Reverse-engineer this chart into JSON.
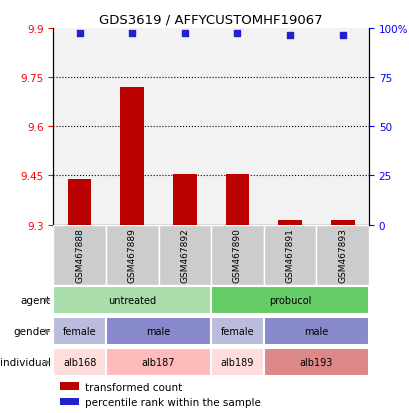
{
  "title": "GDS3619 / AFFYCUSTOMHF19067",
  "samples": [
    "GSM467888",
    "GSM467889",
    "GSM467892",
    "GSM467890",
    "GSM467891",
    "GSM467893"
  ],
  "bar_values": [
    9.44,
    9.72,
    9.455,
    9.455,
    9.315,
    9.315
  ],
  "bar_baseline": 9.3,
  "percentile_values": [
    97.5,
    97.5,
    97.5,
    97.5,
    96.5,
    96.5
  ],
  "ylim_left": [
    9.3,
    9.9
  ],
  "ylim_right": [
    0,
    100
  ],
  "yticks_left": [
    9.3,
    9.45,
    9.6,
    9.75,
    9.9
  ],
  "yticks_right": [
    0,
    25,
    50,
    75,
    100
  ],
  "ytick_labels_right": [
    "0",
    "25",
    "50",
    "75",
    "100%"
  ],
  "dotted_lines": [
    9.75,
    9.6,
    9.45
  ],
  "bar_color": "#bb0000",
  "scatter_color": "#2222cc",
  "agent_groups": [
    {
      "label": "untreated",
      "start": 0,
      "end": 3,
      "color": "#aaddaa"
    },
    {
      "label": "probucol",
      "start": 3,
      "end": 6,
      "color": "#66cc66"
    }
  ],
  "gender_groups": [
    {
      "label": "female",
      "start": 0,
      "end": 1,
      "color": "#bbbbdd"
    },
    {
      "label": "male",
      "start": 1,
      "end": 3,
      "color": "#8888cc"
    },
    {
      "label": "female",
      "start": 3,
      "end": 4,
      "color": "#bbbbdd"
    },
    {
      "label": "male",
      "start": 4,
      "end": 6,
      "color": "#8888cc"
    }
  ],
  "individual_groups": [
    {
      "label": "alb168",
      "start": 0,
      "end": 1,
      "color": "#ffdddd"
    },
    {
      "label": "alb187",
      "start": 1,
      "end": 3,
      "color": "#ffbbbb"
    },
    {
      "label": "alb189",
      "start": 3,
      "end": 4,
      "color": "#ffdddd"
    },
    {
      "label": "alb193",
      "start": 4,
      "end": 6,
      "color": "#dd8888"
    }
  ],
  "row_labels": [
    "agent",
    "gender",
    "individual"
  ],
  "legend_items": [
    {
      "label": "transformed count",
      "color": "#bb0000"
    },
    {
      "label": "percentile rank within the sample",
      "color": "#2222cc"
    }
  ],
  "sample_box_color": "#cccccc",
  "plot_bg_color": "#ffffff"
}
